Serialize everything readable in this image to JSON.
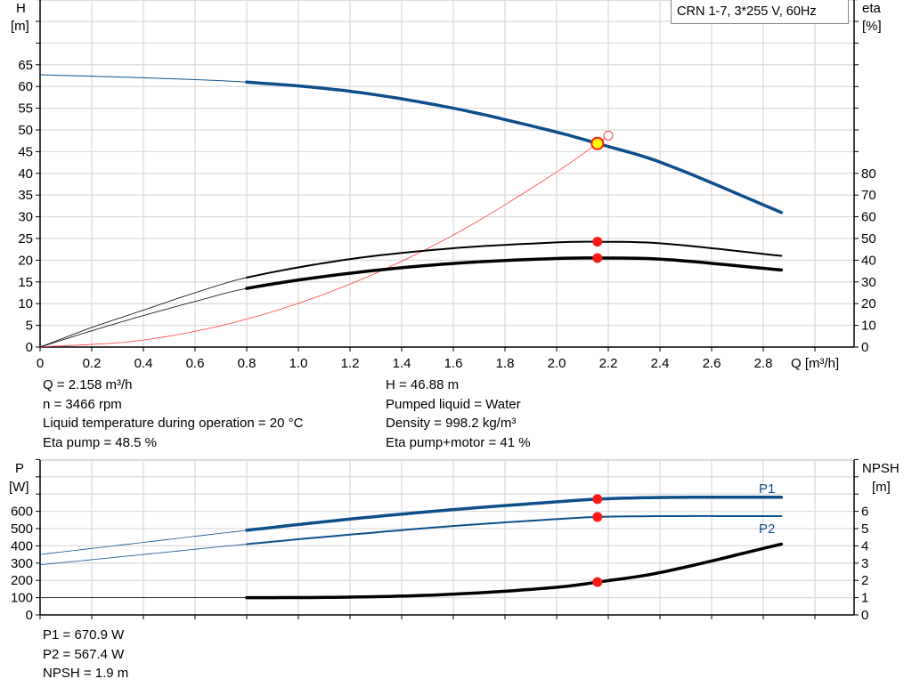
{
  "chart_data": [
    {
      "type": "line",
      "title": "CRN 1-7, 3*255 V, 60Hz",
      "xlabel": "Q [m³/h]",
      "ylabel": [
        "H",
        "[m]"
      ],
      "y2label": [
        "eta",
        "[%]"
      ],
      "xlim": [
        0,
        3.15
      ],
      "ylim": [
        0,
        80
      ],
      "y2lim": [
        0,
        160
      ],
      "xticks": [
        "0",
        "0.2",
        "0.4",
        "0.6",
        "0.8",
        "1.0",
        "1.2",
        "1.4",
        "1.6",
        "1.8",
        "2.0",
        "2.2",
        "2.4",
        "2.6",
        "2.8"
      ],
      "yticks": [
        "0",
        "5",
        "10",
        "15",
        "20",
        "25",
        "30",
        "35",
        "40",
        "45",
        "50",
        "55",
        "60",
        "65"
      ],
      "y2ticks": [
        "0",
        "10",
        "20",
        "30",
        "40",
        "50",
        "60",
        "70",
        "80"
      ],
      "grid": true,
      "series": [
        {
          "key": "H",
          "axis": "left",
          "color": "#0d4f8b",
          "x": [
            0,
            0.4,
            0.8,
            1.2,
            1.6,
            2.0,
            2.158,
            2.4,
            2.87
          ],
          "y": [
            62.7,
            62.0,
            61.0,
            58.9,
            55.0,
            49.5,
            46.88,
            42.6,
            31.0
          ]
        },
        {
          "key": "eta_pump",
          "axis": "right",
          "color": "#000000",
          "x": [
            0,
            0.2,
            0.4,
            0.6,
            0.8,
            1.2,
            1.6,
            2.0,
            2.158,
            2.4,
            2.87
          ],
          "y": [
            0,
            9,
            17,
            25,
            32,
            40.5,
            45.5,
            48.2,
            48.5,
            47.8,
            42
          ]
        },
        {
          "key": "eta_pump_motor",
          "axis": "right",
          "color": "#000000",
          "x": [
            0,
            0.2,
            0.4,
            0.6,
            0.8,
            1.2,
            1.6,
            2.0,
            2.158,
            2.4,
            2.87
          ],
          "y": [
            0,
            7.5,
            14.5,
            21,
            27,
            34,
            38.5,
            40.8,
            41,
            40.5,
            35.5
          ]
        },
        {
          "key": "system_curve",
          "axis": "left",
          "color": "#ff4040",
          "x": [
            0,
            0.4,
            0.8,
            1.2,
            1.6,
            2.0,
            2.2
          ],
          "y": [
            0,
            1.61,
            6.44,
            14.5,
            25.8,
            40.3,
            48.7
          ]
        }
      ],
      "duty_point": {
        "Q": 2.158,
        "H": 46.88,
        "color": "#ffff00"
      },
      "requested_point": {
        "Q": 2.2,
        "H": 48.7
      }
    },
    {
      "type": "line",
      "ylabel": [
        "P",
        "[W]"
      ],
      "y2label": [
        "NPSH",
        "[m]"
      ],
      "xlim": [
        0,
        3.15
      ],
      "ylim": [
        0,
        900
      ],
      "y2lim": [
        0,
        9
      ],
      "yticks": [
        "0",
        "100",
        "200",
        "300",
        "400",
        "500",
        "600"
      ],
      "y2ticks": [
        "0",
        "1",
        "2",
        "3",
        "4",
        "5",
        "6"
      ],
      "grid": true,
      "series": [
        {
          "name": "P1",
          "axis": "left",
          "color": "#0d4f8b",
          "x": [
            0,
            0.4,
            0.8,
            1.2,
            1.6,
            2.0,
            2.158,
            2.4,
            2.87
          ],
          "y": [
            350,
            420,
            490,
            555,
            610,
            655,
            670.9,
            680,
            682
          ]
        },
        {
          "name": "P2",
          "axis": "left",
          "color": "#0d4f8b",
          "x": [
            0,
            0.4,
            0.8,
            1.2,
            1.6,
            2.0,
            2.158,
            2.4,
            2.87
          ],
          "y": [
            290,
            350,
            410,
            465,
            515,
            555,
            567.4,
            572,
            572
          ]
        },
        {
          "key": "NPSH",
          "axis": "right",
          "color": "#000000",
          "x": [
            0,
            0.4,
            0.8,
            1.2,
            1.6,
            2.0,
            2.158,
            2.4,
            2.87
          ],
          "y": [
            1.0,
            1.0,
            1.0,
            1.03,
            1.2,
            1.6,
            1.9,
            2.45,
            4.1
          ]
        }
      ]
    }
  ],
  "info_top": {
    "left": [
      "Q = 2.158 m³/h",
      "n = 3466 rpm",
      "Liquid temperature during operation = 20 °C",
      "Eta pump = 48.5 %"
    ],
    "right": [
      "H = 46.88 m",
      "Pumped liquid = Water",
      "Density = 998.2 kg/m³",
      "Eta pump+motor = 41 %"
    ]
  },
  "info_bottom": [
    "P1 = 670.9 W",
    "P2 = 567.4 W",
    "NPSH = 1.9 m"
  ]
}
